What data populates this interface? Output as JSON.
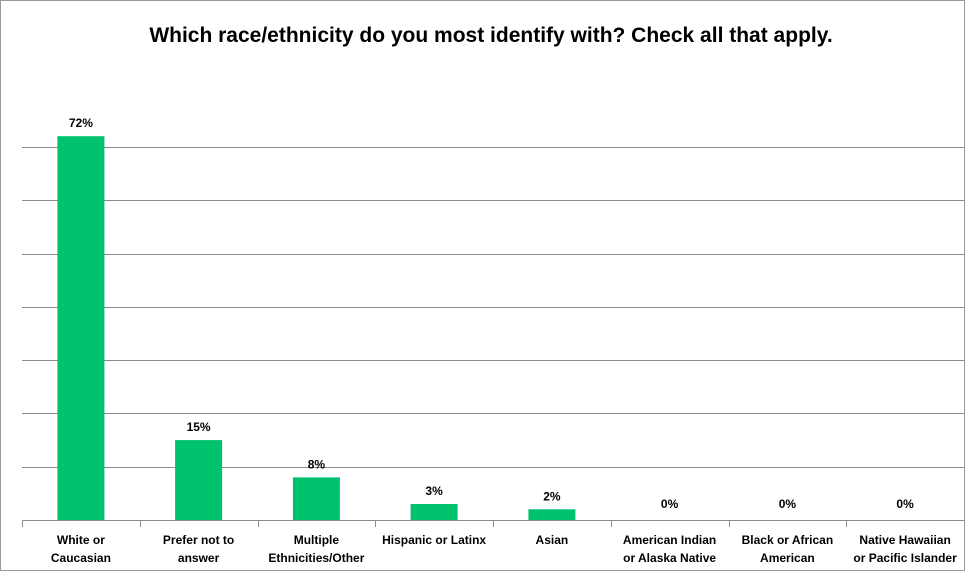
{
  "chart_data": {
    "type": "bar",
    "title": "Which race/ethnicity do you most identify with? Check all that apply.",
    "categories": [
      [
        "White or",
        "Caucasian"
      ],
      [
        "Prefer not to",
        "answer"
      ],
      [
        "Multiple",
        "Ethnicities/Other"
      ],
      [
        "Hispanic or Latinx"
      ],
      [
        "Asian"
      ],
      [
        "American Indian",
        "or Alaska Native"
      ],
      [
        "Black or African",
        "American"
      ],
      [
        "Native Hawaiian",
        "or Pacific Islander"
      ]
    ],
    "values": [
      72,
      15,
      8,
      3,
      2,
      0,
      0,
      0
    ],
    "data_labels": [
      "72%",
      "15%",
      "8%",
      "3%",
      "2%",
      "0%",
      "0%",
      "0%"
    ],
    "ylim": [
      0,
      80
    ],
    "gridlines": [
      10,
      20,
      30,
      40,
      50,
      60,
      70
    ],
    "grid": true,
    "legend": "none",
    "bar_color": "#00c16e",
    "grid_color": "#8c8c8c"
  }
}
